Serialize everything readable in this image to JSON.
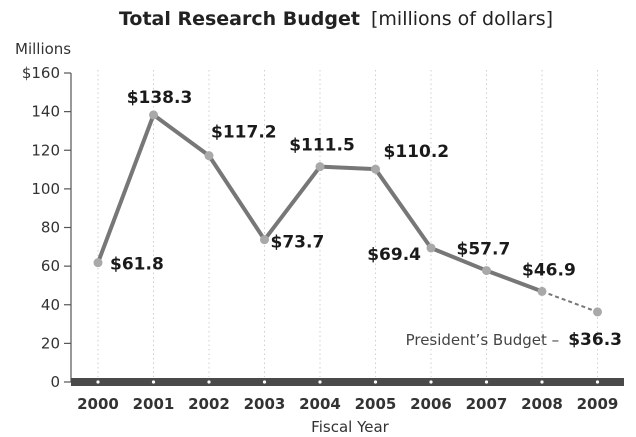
{
  "chart_data": {
    "type": "line",
    "title": "Total Research Budget",
    "subtitle": "[millions of dollars]",
    "xlabel": "Fiscal Year",
    "ylabel": "Millions",
    "ylim": [
      0,
      160
    ],
    "yticks": [
      0,
      20,
      40,
      60,
      80,
      100,
      120,
      140,
      160
    ],
    "ytick_labels": [
      "0",
      "20",
      "40",
      "60",
      "80",
      "100",
      "120",
      "140",
      "$160"
    ],
    "categories": [
      "2000",
      "2001",
      "2002",
      "2003",
      "2004",
      "2005",
      "2006",
      "2007",
      "2008",
      "2009"
    ],
    "values": [
      61.8,
      138.3,
      117.2,
      73.7,
      111.5,
      110.2,
      69.4,
      57.7,
      46.9,
      36.3
    ],
    "data_labels": [
      "$61.8",
      "$138.3",
      "$117.2",
      "$73.7",
      "$111.5",
      "$110.2",
      "$69.4",
      "$57.7",
      "$46.9",
      "$36.3"
    ],
    "projected_from_index": 8,
    "annotation": {
      "text": "President’s Budget –",
      "value": "$36.3"
    },
    "grid": "vertical dotted",
    "colors": {
      "line": "#777777",
      "point": "#a9a9a9",
      "axis_bar": "#4a4a4a",
      "grid": "#cfcfcf"
    }
  }
}
